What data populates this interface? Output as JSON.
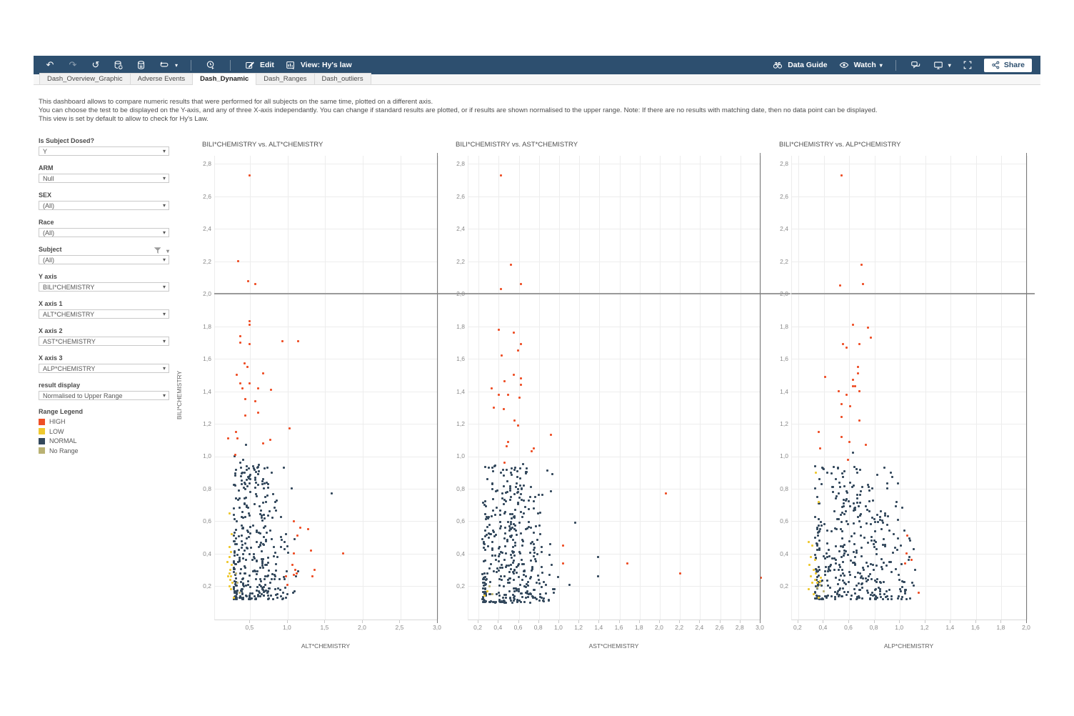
{
  "toolbar": {
    "edit_label": "Edit",
    "view_label": "View: Hy's law",
    "data_guide_label": "Data Guide",
    "watch_label": "Watch",
    "share_label": "Share"
  },
  "tabs": [
    {
      "label": "Dash_Overview_Graphic",
      "active": false
    },
    {
      "label": "Adverse Events",
      "active": false
    },
    {
      "label": "Dash_Dynamic",
      "active": true
    },
    {
      "label": "Dash_Ranges",
      "active": false
    },
    {
      "label": "Dash_outliers",
      "active": false
    }
  ],
  "description": {
    "line1": "This dashboard allows to compare numeric results that were performed for all subjects on the same time, plotted on a different axis.",
    "line2": "You can choose the test to be displayed on the Y-axis, and any of three X-axis independantly. You can change if standard results are plotted, or if results are shown normalised to the upper range. Note: If there are no results with matching date, then no data point can be displayed.",
    "line3": "This view is set by default to allow to check for Hy's Law."
  },
  "filters": [
    {
      "label": "Is Subject Dosed?",
      "value": "Y",
      "has_filter_icon": false
    },
    {
      "label": "ARM",
      "value": "Null",
      "has_filter_icon": false
    },
    {
      "label": "SEX",
      "value": "(All)",
      "has_filter_icon": false
    },
    {
      "label": "Race",
      "value": "(All)",
      "has_filter_icon": false
    },
    {
      "label": "Subject",
      "value": "(All)",
      "has_filter_icon": true
    },
    {
      "label": "Y axis",
      "value": "BILI*CHEMISTRY",
      "has_filter_icon": false
    },
    {
      "label": "X axis 1",
      "value": "ALT*CHEMISTRY",
      "has_filter_icon": false
    },
    {
      "label": "X axis 2",
      "value": "AST*CHEMISTRY",
      "has_filter_icon": false
    },
    {
      "label": "X axis 3",
      "value": "ALP*CHEMISTRY",
      "has_filter_icon": false
    },
    {
      "label": "result display",
      "value": "Normalised to Upper Range",
      "has_filter_icon": false
    }
  ],
  "legend": {
    "title": "Range Legend",
    "items": [
      {
        "label": "HIGH",
        "color": "#ee4f27"
      },
      {
        "label": "LOW",
        "color": "#eec82f"
      },
      {
        "label": "NORMAL",
        "color": "#33485c"
      },
      {
        "label": "No Range",
        "color": "#b9b173"
      }
    ]
  },
  "y_axis_title": "BILI*CHEMISTRY",
  "colors": {
    "toolbar": "#2d4f6f",
    "high": "#ee4f27",
    "low": "#eec82f",
    "normal": "#33485c",
    "no_range": "#b9b173",
    "grid": "#ededed",
    "tick_text": "#8a8a8a",
    "ref_line": "#9a9a9a",
    "panel_line": "#7a7a7a"
  },
  "chart_data": [
    {
      "type": "scatter",
      "title": "BILI*CHEMISTRY vs. ALT*CHEMISTRY",
      "xlabel": "ALT*CHEMISTRY",
      "ylabel": "BILI*CHEMISTRY",
      "x_ticks": [
        0.5,
        1.0,
        1.5,
        2.0,
        2.5,
        3.0
      ],
      "y_ticks": [
        0.2,
        0.4,
        0.6,
        0.8,
        1.0,
        1.2,
        1.4,
        1.6,
        1.8,
        2.0,
        2.2,
        2.4,
        2.6,
        2.8
      ],
      "x_domain": [
        0.03,
        3.0
      ],
      "y_domain": [
        -0.01,
        2.85
      ],
      "ref_line_y": 2.0,
      "ref_line_x": 3.0,
      "points": {
        "high": [
          [
            0.49,
            2.73
          ],
          [
            0.34,
            2.2
          ],
          [
            0.47,
            2.08
          ],
          [
            0.57,
            2.06
          ],
          [
            0.49,
            1.83
          ],
          [
            0.49,
            1.81
          ],
          [
            0.37,
            1.74
          ],
          [
            0.37,
            1.7
          ],
          [
            0.49,
            1.69
          ],
          [
            0.93,
            1.71
          ],
          [
            1.14,
            1.71
          ],
          [
            0.42,
            1.57
          ],
          [
            0.46,
            1.55
          ],
          [
            0.32,
            1.5
          ],
          [
            0.37,
            1.45
          ],
          [
            0.49,
            1.45
          ],
          [
            0.4,
            1.42
          ],
          [
            0.67,
            1.51
          ],
          [
            0.61,
            1.42
          ],
          [
            0.78,
            1.41
          ],
          [
            0.43,
            1.35
          ],
          [
            0.57,
            1.34
          ],
          [
            0.61,
            1.27
          ],
          [
            0.43,
            1.25
          ],
          [
            0.31,
            1.15
          ],
          [
            0.21,
            1.11
          ],
          [
            0.33,
            1.11
          ],
          [
            0.67,
            1.08
          ],
          [
            0.77,
            1.1
          ],
          [
            1.02,
            1.17
          ],
          [
            0.3,
            1.01
          ],
          [
            1.08,
            0.6
          ],
          [
            1.17,
            0.56
          ],
          [
            1.27,
            0.55
          ],
          [
            1.13,
            0.51
          ],
          [
            1.08,
            0.4
          ],
          [
            1.31,
            0.42
          ],
          [
            1.74,
            0.4
          ],
          [
            1.06,
            0.33
          ],
          [
            1.1,
            0.3
          ],
          [
            1.08,
            0.27
          ],
          [
            1.12,
            0.28
          ],
          [
            1.36,
            0.3
          ],
          [
            1.33,
            0.26
          ],
          [
            0.98,
            0.26
          ],
          [
            1.0,
            0.21
          ]
        ],
        "low": [
          [
            0.22,
            0.65
          ],
          [
            0.25,
            0.52
          ],
          [
            0.22,
            0.44
          ],
          [
            0.24,
            0.41
          ],
          [
            0.22,
            0.38
          ],
          [
            0.25,
            0.33
          ],
          [
            0.23,
            0.3
          ],
          [
            0.22,
            0.28
          ],
          [
            0.24,
            0.26
          ],
          [
            0.23,
            0.24
          ],
          [
            0.26,
            0.22
          ],
          [
            0.22,
            0.2
          ],
          [
            0.28,
            0.13
          ],
          [
            0.2,
            0.35
          ],
          [
            0.21,
            0.26
          ],
          [
            0.24,
            0.18
          ]
        ],
        "normal_outliers": [
          [
            1.59,
            0.77
          ],
          [
            0.44,
            1.07
          ],
          [
            0.29,
            1.0
          ],
          [
            0.37,
            0.96
          ],
          [
            0.73,
            0.93
          ],
          [
            0.95,
            0.93
          ],
          [
            1.05,
            0.8
          ],
          [
            0.41,
            0.98
          ]
        ],
        "no_range": [
          [
            0.33,
            0.22
          ],
          [
            0.36,
            0.16
          ],
          [
            0.31,
            0.28
          ]
        ]
      },
      "normal_cluster": {
        "count": 360,
        "seed": 11,
        "x_peak": 0.55,
        "x_min": 0.28,
        "x_max": 1.35,
        "spread": 0.48,
        "y_min": 0.12,
        "y_span": 0.83
      }
    },
    {
      "type": "scatter",
      "title": "BILI*CHEMISTRY vs. AST*CHEMISTRY",
      "xlabel": "AST*CHEMISTRY",
      "ylabel": "BILI*CHEMISTRY",
      "x_ticks": [
        0.2,
        0.4,
        0.6,
        0.8,
        1.0,
        1.2,
        1.4,
        1.6,
        1.8,
        2.0,
        2.2,
        2.4,
        2.6,
        2.8,
        3.0
      ],
      "y_ticks": [
        0.2,
        0.4,
        0.6,
        0.8,
        1.0,
        1.2,
        1.4,
        1.6,
        1.8,
        2.0,
        2.2,
        2.4,
        2.6,
        2.8
      ],
      "x_domain": [
        0.1,
        3.0
      ],
      "y_domain": [
        -0.01,
        2.85
      ],
      "ref_line_y": 2.0,
      "ref_line_x": 3.0,
      "points": {
        "high": [
          [
            0.42,
            2.73
          ],
          [
            0.52,
            2.18
          ],
          [
            0.42,
            2.03
          ],
          [
            0.62,
            2.06
          ],
          [
            0.4,
            1.78
          ],
          [
            0.55,
            1.76
          ],
          [
            0.62,
            1.69
          ],
          [
            0.59,
            1.65
          ],
          [
            0.43,
            1.62
          ],
          [
            0.55,
            1.5
          ],
          [
            0.62,
            1.48
          ],
          [
            0.62,
            1.44
          ],
          [
            0.46,
            1.46
          ],
          [
            0.33,
            1.42
          ],
          [
            0.4,
            1.38
          ],
          [
            0.49,
            1.38
          ],
          [
            0.61,
            1.36
          ],
          [
            0.35,
            1.3
          ],
          [
            0.45,
            1.29
          ],
          [
            0.56,
            1.22
          ],
          [
            0.59,
            1.19
          ],
          [
            0.92,
            1.13
          ],
          [
            0.49,
            1.09
          ],
          [
            0.48,
            1.06
          ],
          [
            0.75,
            1.05
          ],
          [
            0.73,
            1.03
          ],
          [
            0.46,
            0.96
          ],
          [
            2.06,
            0.77
          ],
          [
            1.04,
            0.45
          ],
          [
            1.04,
            0.34
          ],
          [
            1.68,
            0.34
          ],
          [
            2.2,
            0.28
          ],
          [
            3.0,
            0.25
          ]
        ],
        "low": [
          [
            0.26,
            0.14
          ],
          [
            0.29,
            0.17
          ]
        ],
        "normal_outliers": [
          [
            1.16,
            0.59
          ],
          [
            1.39,
            0.38
          ],
          [
            1.39,
            0.26
          ],
          [
            1.1,
            0.21
          ],
          [
            0.88,
            0.91
          ],
          [
            0.93,
            0.89
          ],
          [
            0.64,
            0.95
          ]
        ],
        "no_range": [
          [
            0.31,
            0.2
          ],
          [
            0.34,
            0.15
          ]
        ]
      },
      "normal_cluster": {
        "count": 400,
        "seed": 22,
        "x_peak": 0.52,
        "x_min": 0.24,
        "x_max": 1.0,
        "spread": 0.42,
        "y_min": 0.1,
        "y_span": 0.85
      }
    },
    {
      "type": "scatter",
      "title": "BILI*CHEMISTRY vs. ALP*CHEMISTRY",
      "xlabel": "ALP*CHEMISTRY",
      "ylabel": "BILI*CHEMISTRY",
      "x_ticks": [
        0.2,
        0.4,
        0.6,
        0.8,
        1.0,
        1.2,
        1.4,
        1.6,
        1.8,
        2.0
      ],
      "y_ticks": [
        0.2,
        0.4,
        0.6,
        0.8,
        1.0,
        1.2,
        1.4,
        1.6,
        1.8,
        2.0,
        2.2,
        2.4,
        2.6,
        2.8
      ],
      "x_domain": [
        0.15,
        2.0
      ],
      "y_domain": [
        -0.01,
        2.85
      ],
      "ref_line_y": 2.0,
      "ref_line_x": 2.0,
      "points": {
        "high": [
          [
            0.54,
            2.73
          ],
          [
            0.7,
            2.18
          ],
          [
            0.53,
            2.05
          ],
          [
            0.71,
            2.06
          ],
          [
            0.63,
            1.81
          ],
          [
            0.75,
            1.79
          ],
          [
            0.77,
            1.73
          ],
          [
            0.55,
            1.69
          ],
          [
            0.68,
            1.69
          ],
          [
            0.58,
            1.67
          ],
          [
            0.67,
            1.55
          ],
          [
            0.67,
            1.51
          ],
          [
            0.41,
            1.49
          ],
          [
            0.63,
            1.47
          ],
          [
            0.63,
            1.43
          ],
          [
            0.65,
            1.43
          ],
          [
            0.52,
            1.4
          ],
          [
            0.68,
            1.4
          ],
          [
            0.58,
            1.38
          ],
          [
            0.54,
            1.32
          ],
          [
            0.61,
            1.31
          ],
          [
            0.54,
            1.24
          ],
          [
            0.68,
            1.22
          ],
          [
            0.36,
            1.15
          ],
          [
            0.54,
            1.12
          ],
          [
            0.6,
            1.09
          ],
          [
            0.73,
            1.07
          ],
          [
            0.37,
            1.05
          ],
          [
            0.59,
            0.98
          ],
          [
            1.06,
            0.51
          ],
          [
            1.05,
            0.4
          ],
          [
            1.04,
            0.34
          ],
          [
            1.09,
            0.36
          ],
          [
            1.15,
            0.16
          ]
        ],
        "low": [
          [
            0.34,
            0.9
          ],
          [
            0.36,
            0.72
          ],
          [
            0.28,
            0.47
          ],
          [
            0.31,
            0.45
          ],
          [
            0.3,
            0.38
          ],
          [
            0.33,
            0.36
          ],
          [
            0.29,
            0.33
          ],
          [
            0.32,
            0.3
          ],
          [
            0.34,
            0.28
          ],
          [
            0.3,
            0.26
          ],
          [
            0.33,
            0.24
          ],
          [
            0.31,
            0.22
          ],
          [
            0.35,
            0.22
          ],
          [
            0.28,
            0.18
          ],
          [
            0.32,
            0.15
          ],
          [
            0.36,
            0.13
          ],
          [
            0.38,
            0.25
          ],
          [
            0.37,
            0.23
          ]
        ],
        "normal_outliers": [
          [
            0.4,
            0.92
          ],
          [
            0.63,
            1.02
          ],
          [
            0.88,
            0.93
          ],
          [
            0.93,
            0.9
          ],
          [
            1.08,
            0.48
          ],
          [
            1.12,
            0.3
          ]
        ],
        "no_range": [
          [
            0.37,
            0.21
          ],
          [
            0.4,
            0.17
          ],
          [
            0.35,
            0.19
          ]
        ]
      },
      "normal_cluster": {
        "count": 400,
        "seed": 33,
        "x_peak": 0.62,
        "x_min": 0.33,
        "x_max": 1.12,
        "spread": 0.5,
        "y_min": 0.12,
        "y_span": 0.83
      }
    }
  ]
}
